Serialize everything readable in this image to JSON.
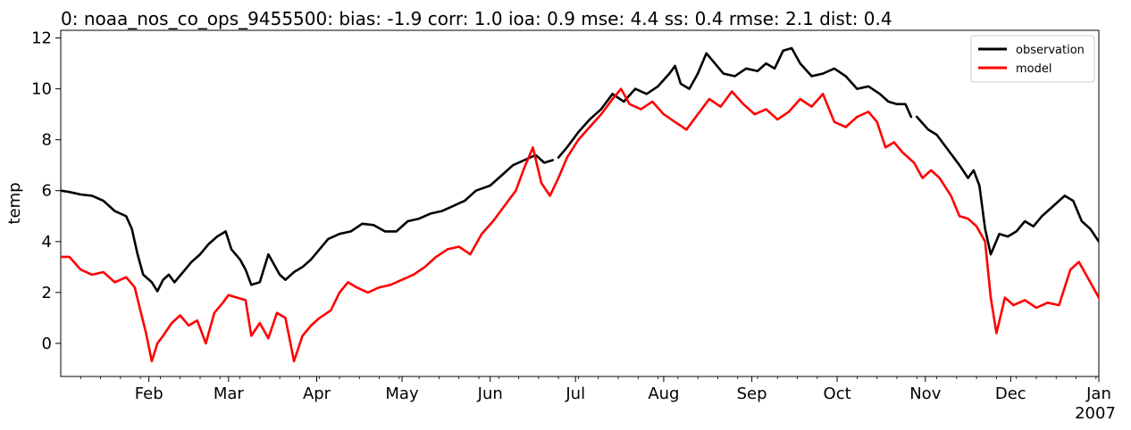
{
  "chart_data": {
    "type": "line",
    "title": "0: noaa_nos_co_ops_9455500: bias: -1.9  corr: 1.0  ioa: 0.9  mse: 4.4  ss: 0.4  rmse: 2.1  dist: 0.4",
    "xlabel": "",
    "ylabel": "temp",
    "xlim": [
      "2006-01-01",
      "2007-01-01"
    ],
    "ylim": [
      -1.3,
      12.3
    ],
    "y_ticks": [
      0,
      2,
      4,
      6,
      8,
      10,
      12
    ],
    "y_tick_labels": [
      "0",
      "2",
      "4",
      "6",
      "8",
      "10",
      "12"
    ],
    "x_ticks": [
      {
        "date": "2006-02-01",
        "label": "Feb",
        "sublabel": ""
      },
      {
        "date": "2006-03-01",
        "label": "Mar",
        "sublabel": ""
      },
      {
        "date": "2006-04-01",
        "label": "Apr",
        "sublabel": ""
      },
      {
        "date": "2006-05-01",
        "label": "May",
        "sublabel": ""
      },
      {
        "date": "2006-06-01",
        "label": "Jun",
        "sublabel": ""
      },
      {
        "date": "2006-07-01",
        "label": "Jul",
        "sublabel": ""
      },
      {
        "date": "2006-08-01",
        "label": "Aug",
        "sublabel": ""
      },
      {
        "date": "2006-09-01",
        "label": "Sep",
        "sublabel": ""
      },
      {
        "date": "2006-10-01",
        "label": "Oct",
        "sublabel": ""
      },
      {
        "date": "2006-11-01",
        "label": "Nov",
        "sublabel": ""
      },
      {
        "date": "2006-12-01",
        "label": "Dec",
        "sublabel": ""
      },
      {
        "date": "2007-01-01",
        "label": "Jan",
        "sublabel": "2007"
      }
    ],
    "grid": false,
    "legend_position": "top-right",
    "series": [
      {
        "name": "observation",
        "color": "#000000",
        "points": [
          [
            "2006-01-01",
            6.0
          ],
          [
            "2006-01-04",
            5.95
          ],
          [
            "2006-01-08",
            5.85
          ],
          [
            "2006-01-12",
            5.8
          ],
          [
            "2006-01-16",
            5.6
          ],
          [
            "2006-01-20",
            5.2
          ],
          [
            "2006-01-24",
            5.0
          ],
          [
            "2006-01-26",
            4.5
          ],
          [
            "2006-01-28",
            3.5
          ],
          [
            "2006-01-30",
            2.7
          ],
          [
            "2006-02-02",
            2.4
          ],
          [
            "2006-02-04",
            2.05
          ],
          [
            "2006-02-06",
            2.5
          ],
          [
            "2006-02-08",
            2.7
          ],
          [
            "2006-02-10",
            2.4
          ],
          [
            "2006-02-13",
            2.8
          ],
          [
            "2006-02-16",
            3.2
          ],
          [
            "2006-02-19",
            3.5
          ],
          [
            "2006-02-22",
            3.9
          ],
          [
            "2006-02-25",
            4.2
          ],
          [
            "2006-02-28",
            4.4
          ],
          [
            "2006-03-02",
            3.7
          ],
          [
            "2006-03-05",
            3.3
          ],
          [
            "2006-03-07",
            2.9
          ],
          [
            "2006-03-09",
            2.3
          ],
          [
            "2006-03-12",
            2.4
          ],
          [
            "2006-03-15",
            3.5
          ],
          [
            "2006-03-17",
            3.1
          ],
          [
            "2006-03-19",
            2.7
          ],
          [
            "2006-03-21",
            2.5
          ],
          [
            "2006-03-24",
            2.8
          ],
          [
            "2006-03-27",
            3.0
          ],
          [
            "2006-03-30",
            3.3
          ],
          [
            "2006-04-02",
            3.7
          ],
          [
            "2006-04-05",
            4.1
          ],
          [
            "2006-04-09",
            4.3
          ],
          [
            "2006-04-13",
            4.4
          ],
          [
            "2006-04-17",
            4.7
          ],
          [
            "2006-04-21",
            4.65
          ],
          [
            "2006-04-25",
            4.4
          ],
          [
            "2006-04-29",
            4.4
          ],
          [
            "2006-05-03",
            4.8
          ],
          [
            "2006-05-07",
            4.9
          ],
          [
            "2006-05-11",
            5.1
          ],
          [
            "2006-05-15",
            5.2
          ],
          [
            "2006-05-19",
            5.4
          ],
          [
            "2006-05-23",
            5.6
          ],
          [
            "2006-05-27",
            6.0
          ],
          [
            "2006-06-01",
            6.2
          ],
          [
            "2006-06-05",
            6.6
          ],
          [
            "2006-06-09",
            7.0
          ],
          [
            "2006-06-13",
            7.2
          ],
          [
            "2006-06-17",
            7.4
          ],
          [
            "2006-06-20",
            7.1
          ],
          [
            "2006-06-23",
            7.2
          ],
          null,
          [
            "2006-06-25",
            7.3
          ],
          [
            "2006-06-28",
            7.7
          ],
          [
            "2006-07-02",
            8.3
          ],
          [
            "2006-07-06",
            8.8
          ],
          [
            "2006-07-10",
            9.2
          ],
          [
            "2006-07-14",
            9.8
          ],
          [
            "2006-07-18",
            9.5
          ],
          [
            "2006-07-22",
            10.0
          ],
          [
            "2006-07-26",
            9.8
          ],
          [
            "2006-07-30",
            10.1
          ],
          [
            "2006-08-03",
            10.6
          ],
          [
            "2006-08-05",
            10.9
          ],
          [
            "2006-08-07",
            10.2
          ],
          [
            "2006-08-10",
            10.0
          ],
          [
            "2006-08-13",
            10.6
          ],
          [
            "2006-08-16",
            11.4
          ],
          [
            "2006-08-19",
            11.0
          ],
          [
            "2006-08-22",
            10.6
          ],
          [
            "2006-08-26",
            10.5
          ],
          [
            "2006-08-30",
            10.8
          ],
          [
            "2006-09-03",
            10.7
          ],
          [
            "2006-09-06",
            11.0
          ],
          [
            "2006-09-09",
            10.8
          ],
          [
            "2006-09-12",
            11.5
          ],
          [
            "2006-09-15",
            11.6
          ],
          [
            "2006-09-18",
            11.0
          ],
          [
            "2006-09-22",
            10.5
          ],
          [
            "2006-09-26",
            10.6
          ],
          [
            "2006-09-30",
            10.8
          ],
          [
            "2006-10-04",
            10.5
          ],
          [
            "2006-10-08",
            10.0
          ],
          [
            "2006-10-12",
            10.1
          ],
          [
            "2006-10-16",
            9.8
          ],
          [
            "2006-10-19",
            9.5
          ],
          [
            "2006-10-22",
            9.4
          ],
          [
            "2006-10-25",
            9.4
          ],
          [
            "2006-10-27",
            8.9
          ],
          null,
          [
            "2006-10-29",
            8.9
          ],
          [
            "2006-11-02",
            8.4
          ],
          [
            "2006-11-05",
            8.2
          ],
          [
            "2006-11-09",
            7.6
          ],
          [
            "2006-11-13",
            7.0
          ],
          [
            "2006-11-16",
            6.5
          ],
          [
            "2006-11-18",
            6.8
          ],
          [
            "2006-11-20",
            6.2
          ],
          [
            "2006-11-22",
            4.5
          ],
          [
            "2006-11-24",
            3.5
          ],
          [
            "2006-11-27",
            4.3
          ],
          [
            "2006-11-30",
            4.2
          ],
          [
            "2006-12-03",
            4.4
          ],
          [
            "2006-12-06",
            4.8
          ],
          [
            "2006-12-09",
            4.6
          ],
          [
            "2006-12-12",
            5.0
          ],
          [
            "2006-12-16",
            5.4
          ],
          [
            "2006-12-20",
            5.8
          ],
          [
            "2006-12-23",
            5.6
          ],
          [
            "2006-12-26",
            4.8
          ],
          [
            "2006-12-29",
            4.5
          ],
          [
            "2007-01-01",
            4.0
          ],
          [
            "2007-01-04",
            3.6
          ],
          [
            "2007-01-07",
            3.2
          ],
          [
            "2007-01-10",
            3.0
          ]
        ]
      },
      {
        "name": "model",
        "color": "#ff0000",
        "points": [
          [
            "2006-01-01",
            3.4
          ],
          [
            "2006-01-04",
            3.4
          ],
          [
            "2006-01-08",
            2.9
          ],
          [
            "2006-01-12",
            2.7
          ],
          [
            "2006-01-16",
            2.8
          ],
          [
            "2006-01-20",
            2.4
          ],
          [
            "2006-01-24",
            2.6
          ],
          [
            "2006-01-27",
            2.2
          ],
          [
            "2006-01-29",
            1.3
          ],
          [
            "2006-01-31",
            0.4
          ],
          [
            "2006-02-02",
            -0.7
          ],
          [
            "2006-02-04",
            0.0
          ],
          [
            "2006-02-06",
            0.3
          ],
          [
            "2006-02-09",
            0.8
          ],
          [
            "2006-02-12",
            1.1
          ],
          [
            "2006-02-15",
            0.7
          ],
          [
            "2006-02-18",
            0.9
          ],
          [
            "2006-02-21",
            0.0
          ],
          [
            "2006-02-24",
            1.2
          ],
          [
            "2006-02-27",
            1.6
          ],
          [
            "2006-03-01",
            1.9
          ],
          [
            "2006-03-04",
            1.8
          ],
          [
            "2006-03-07",
            1.7
          ],
          [
            "2006-03-09",
            0.3
          ],
          [
            "2006-03-12",
            0.8
          ],
          [
            "2006-03-15",
            0.2
          ],
          [
            "2006-03-18",
            1.2
          ],
          [
            "2006-03-21",
            1.0
          ],
          [
            "2006-03-24",
            -0.7
          ],
          [
            "2006-03-27",
            0.3
          ],
          [
            "2006-03-30",
            0.7
          ],
          [
            "2006-04-02",
            1.0
          ],
          [
            "2006-04-06",
            1.3
          ],
          [
            "2006-04-09",
            2.0
          ],
          [
            "2006-04-12",
            2.4
          ],
          [
            "2006-04-15",
            2.2
          ],
          [
            "2006-04-19",
            2.0
          ],
          [
            "2006-04-23",
            2.2
          ],
          [
            "2006-04-27",
            2.3
          ],
          [
            "2006-05-01",
            2.5
          ],
          [
            "2006-05-05",
            2.7
          ],
          [
            "2006-05-09",
            3.0
          ],
          [
            "2006-05-13",
            3.4
          ],
          [
            "2006-05-17",
            3.7
          ],
          [
            "2006-05-21",
            3.8
          ],
          [
            "2006-05-25",
            3.5
          ],
          [
            "2006-05-29",
            4.3
          ],
          [
            "2006-06-02",
            4.8
          ],
          [
            "2006-06-06",
            5.4
          ],
          [
            "2006-06-10",
            6.0
          ],
          [
            "2006-06-13",
            6.9
          ],
          [
            "2006-06-16",
            7.7
          ],
          [
            "2006-06-19",
            6.3
          ],
          [
            "2006-06-22",
            5.8
          ],
          [
            "2006-06-25",
            6.5
          ],
          [
            "2006-06-28",
            7.3
          ],
          [
            "2006-07-02",
            8.0
          ],
          [
            "2006-07-06",
            8.5
          ],
          [
            "2006-07-10",
            9.0
          ],
          [
            "2006-07-14",
            9.6
          ],
          [
            "2006-07-17",
            10.0
          ],
          [
            "2006-07-20",
            9.4
          ],
          [
            "2006-07-24",
            9.2
          ],
          [
            "2006-07-28",
            9.5
          ],
          [
            "2006-08-01",
            9.0
          ],
          [
            "2006-08-05",
            8.7
          ],
          [
            "2006-08-09",
            8.4
          ],
          [
            "2006-08-13",
            9.0
          ],
          [
            "2006-08-17",
            9.6
          ],
          [
            "2006-08-21",
            9.3
          ],
          [
            "2006-08-25",
            9.9
          ],
          [
            "2006-08-29",
            9.4
          ],
          [
            "2006-09-02",
            9.0
          ],
          [
            "2006-09-06",
            9.2
          ],
          [
            "2006-09-10",
            8.8
          ],
          [
            "2006-09-14",
            9.1
          ],
          [
            "2006-09-18",
            9.6
          ],
          [
            "2006-09-22",
            9.3
          ],
          [
            "2006-09-26",
            9.8
          ],
          [
            "2006-09-30",
            8.7
          ],
          [
            "2006-10-04",
            8.5
          ],
          [
            "2006-10-08",
            8.9
          ],
          [
            "2006-10-12",
            9.1
          ],
          [
            "2006-10-15",
            8.7
          ],
          [
            "2006-10-18",
            7.7
          ],
          [
            "2006-10-21",
            7.9
          ],
          [
            "2006-10-24",
            7.5
          ],
          [
            "2006-10-28",
            7.1
          ],
          [
            "2006-10-31",
            6.5
          ],
          [
            "2006-11-03",
            6.8
          ],
          [
            "2006-11-06",
            6.5
          ],
          [
            "2006-11-10",
            5.8
          ],
          [
            "2006-11-13",
            5.0
          ],
          [
            "2006-11-16",
            4.9
          ],
          [
            "2006-11-19",
            4.6
          ],
          [
            "2006-11-22",
            4.0
          ],
          [
            "2006-11-24",
            1.8
          ],
          [
            "2006-11-26",
            0.4
          ],
          [
            "2006-11-29",
            1.8
          ],
          [
            "2006-12-02",
            1.5
          ],
          [
            "2006-12-06",
            1.7
          ],
          [
            "2006-12-10",
            1.4
          ],
          [
            "2006-12-14",
            1.6
          ],
          [
            "2006-12-18",
            1.5
          ],
          [
            "2006-12-22",
            2.9
          ],
          [
            "2006-12-25",
            3.2
          ],
          [
            "2006-12-28",
            2.6
          ],
          [
            "2007-01-01",
            1.8
          ],
          [
            "2007-01-04",
            0.7
          ],
          [
            "2007-01-07",
            1.6
          ],
          [
            "2007-01-10",
            0.4
          ]
        ]
      }
    ]
  }
}
